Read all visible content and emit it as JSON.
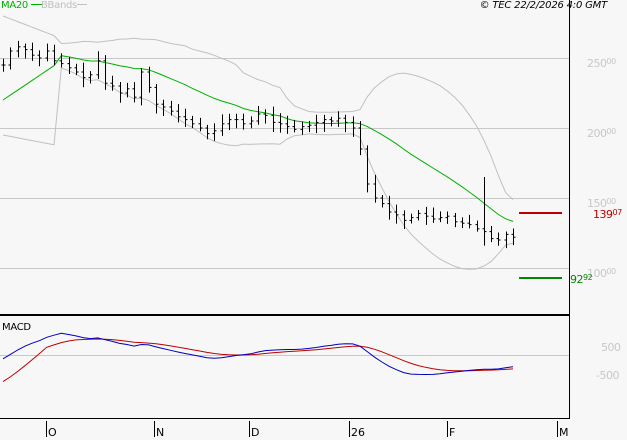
{
  "header": {
    "legend_ma": "MA20",
    "legend_bbands": "BBands",
    "copyright": "© TEC 22/2/2026 4:0 GMT"
  },
  "colors": {
    "background": "#f7f7f7",
    "ma20": "#00b000",
    "bbands": "#c0c0c0",
    "price_bars": "#000000",
    "resistance": "#c00000",
    "support": "#008800",
    "macd": "#0000c0",
    "signal": "#c00000",
    "grid": "#c8c8c8",
    "axis_label": "#c8c8c8"
  },
  "main_panel": {
    "y_labels": [
      {
        "int": "250",
        "dec": "00",
        "value": 250
      },
      {
        "int": "200",
        "dec": "00",
        "value": 200
      },
      {
        "int": "150",
        "dec": "00",
        "value": 150
      },
      {
        "int": "100",
        "dec": "00",
        "value": 100
      }
    ],
    "resistance": {
      "int": "139",
      "dec": "07",
      "value": 139.07
    },
    "support": {
      "int": "92",
      "dec": "92",
      "value": 92.92
    }
  },
  "macd_panel": {
    "title": "MACD",
    "y_labels": [
      "500",
      "-500"
    ]
  },
  "x_axis": {
    "labels": [
      "O",
      "N",
      "D",
      "26",
      "F",
      "M"
    ]
  },
  "chart_data": [
    {
      "type": "ohlc",
      "title": "Price with MA20 and Bollinger Bands",
      "ylim": [
        80,
        275
      ],
      "y_ticks": [
        100,
        150,
        200,
        250
      ],
      "x_ticks": [
        "O",
        "N",
        "D",
        "26",
        "F",
        "M"
      ],
      "grid": true,
      "close_approx": [
        245,
        255,
        258,
        256,
        252,
        250,
        255,
        248,
        246,
        243,
        240,
        236,
        238,
        248,
        232,
        230,
        225,
        228,
        222,
        240,
        229,
        217,
        215,
        212,
        208,
        206,
        203,
        200,
        196,
        198,
        203,
        206,
        206,
        203,
        205,
        210,
        209,
        204,
        203,
        201,
        199,
        201,
        202,
        204,
        206,
        205,
        207,
        204,
        200,
        185,
        160,
        150,
        146,
        140,
        138,
        134,
        136,
        139,
        137,
        135,
        136,
        137,
        133,
        132,
        131,
        128,
        126,
        121,
        120,
        124,
        122
      ],
      "series": [
        {
          "name": "MA20",
          "color": "#00b000",
          "description": "rising from ~220 to peak ~248 mid-October, declining to ~205 in December, flat ~205 until mid-January, then falling to ~128 by late February"
        },
        {
          "name": "BBands upper",
          "color": "#c0c0c0"
        },
        {
          "name": "BBands lower",
          "color": "#c0c0c0"
        }
      ],
      "levels": [
        {
          "name": "resistance",
          "value": 139.07,
          "color": "#c00000"
        },
        {
          "name": "support",
          "value": 92.92,
          "color": "#008800"
        }
      ]
    },
    {
      "type": "line",
      "title": "MACD",
      "y_ticks": [
        500,
        -500
      ],
      "series": [
        {
          "name": "MACD",
          "color": "#0000c0",
          "description": "high positive in early Oct, declining to trough late Nov, small recovery around early Jan, sharp drop mid-Jan to deep low early Feb, recovering toward late Feb"
        },
        {
          "name": "Signal",
          "color": "#c00000"
        }
      ]
    }
  ]
}
